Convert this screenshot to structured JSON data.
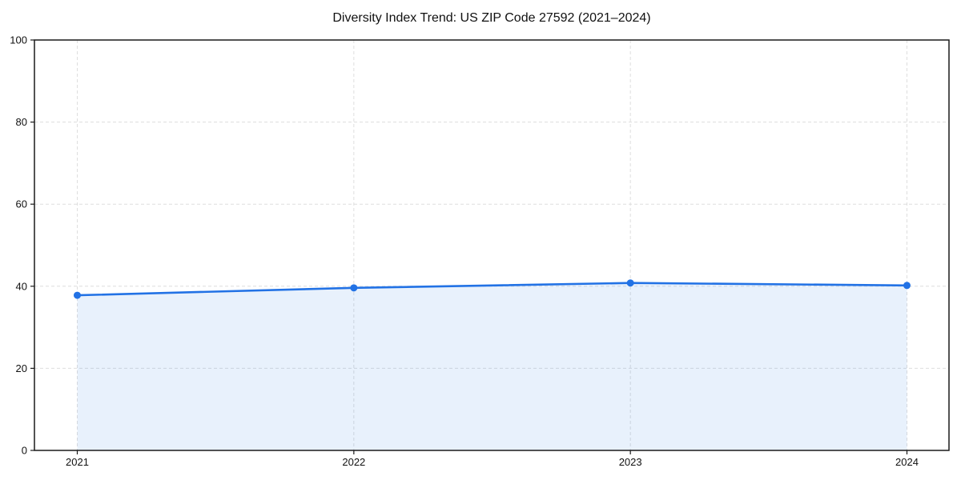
{
  "chart_data": {
    "type": "line",
    "title": "Diversity Index Trend: US ZIP Code 27592 (2021–2024)",
    "x": [
      2021,
      2022,
      2023,
      2024
    ],
    "xtick_labels": [
      "2021",
      "2022",
      "2023",
      "2024"
    ],
    "values": [
      37.8,
      39.6,
      40.8,
      40.2
    ],
    "xlabel": "",
    "ylabel": "",
    "ylim": [
      0,
      100
    ],
    "yticks": [
      0,
      20,
      40,
      60,
      80,
      100
    ],
    "grid": true,
    "grid_style": "dashed",
    "legend": "none",
    "area_fill": true,
    "markers": true,
    "colors": {
      "line": "#2272e5",
      "marker": "#2272e5",
      "fill": "#2272e5",
      "fill_opacity": 0.1,
      "grid": "#dedede",
      "spine": "#1a1a1a",
      "tick_label": "#111111",
      "title": "#111111",
      "background": "#ffffff"
    }
  }
}
